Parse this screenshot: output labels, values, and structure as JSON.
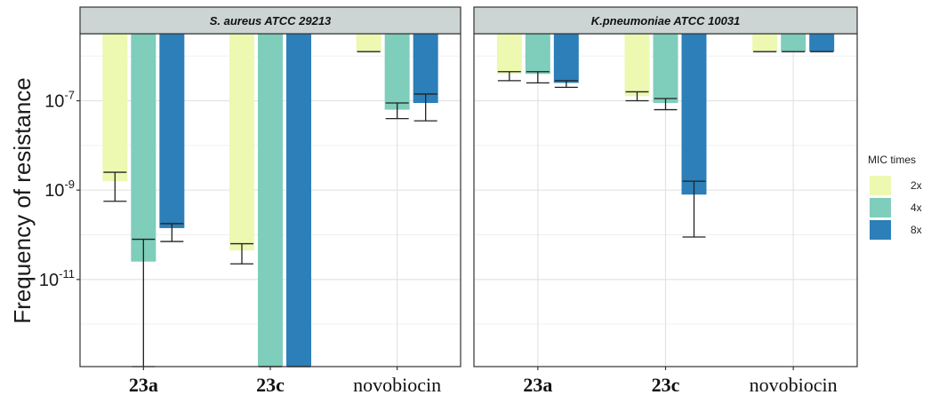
{
  "chart_data": {
    "type": "bar",
    "ylabel": "Frequency of resistance",
    "yscale": "log10",
    "ylim_log10": [
      -12.95,
      -5.5
    ],
    "y_ticks_log10": [
      -11,
      -9,
      -7
    ],
    "y_tick_labels": [
      "10-11",
      "10-9",
      "10-7"
    ],
    "categories": [
      "23a",
      "23c",
      "novobiocin"
    ],
    "grid": true,
    "legend": {
      "title": "MIC times",
      "position": "right",
      "entries": [
        {
          "label": "2x",
          "color": "#edf8b1"
        },
        {
          "label": "4x",
          "color": "#7fcdbb"
        },
        {
          "label": "8x",
          "color": "#2c7fb8"
        }
      ]
    },
    "panels": [
      {
        "title": "S. aureus ATCC 29213",
        "series": [
          {
            "name": "2x",
            "log10_values": [
              -8.8,
              -10.35,
              -5.9
            ],
            "log10_err_low": [
              -9.25,
              -10.65,
              -5.9
            ],
            "log10_err_high": [
              -8.6,
              -10.2,
              -5.9
            ]
          },
          {
            "name": "4x",
            "log10_values": [
              -10.6,
              -12.95,
              -7.2
            ],
            "log10_err_low": [
              -12.95,
              -12.95,
              -7.4
            ],
            "log10_err_high": [
              -10.1,
              -12.95,
              -7.05
            ]
          },
          {
            "name": "8x",
            "log10_values": [
              -9.85,
              -12.95,
              -7.05
            ],
            "log10_err_low": [
              -10.15,
              -12.95,
              -7.45
            ],
            "log10_err_high": [
              -9.75,
              -12.95,
              -6.85
            ]
          }
        ]
      },
      {
        "title": "K.pneumoniae ATCC 10031",
        "series": [
          {
            "name": "2x",
            "log10_values": [
              -6.4,
              -6.9,
              -5.9
            ],
            "log10_err_low": [
              -6.55,
              -7.0,
              -5.9
            ],
            "log10_err_high": [
              -6.35,
              -6.8,
              -5.9
            ]
          },
          {
            "name": "4x",
            "log10_values": [
              -6.4,
              -7.05,
              -5.9
            ],
            "log10_err_low": [
              -6.6,
              -7.2,
              -5.9
            ],
            "log10_err_high": [
              -6.35,
              -6.95,
              -5.9
            ]
          },
          {
            "name": "8x",
            "log10_values": [
              -6.6,
              -9.1,
              -5.9
            ],
            "log10_err_low": [
              -6.7,
              -10.05,
              -5.9
            ],
            "log10_err_high": [
              -6.55,
              -8.8,
              -5.9
            ]
          }
        ]
      }
    ]
  }
}
